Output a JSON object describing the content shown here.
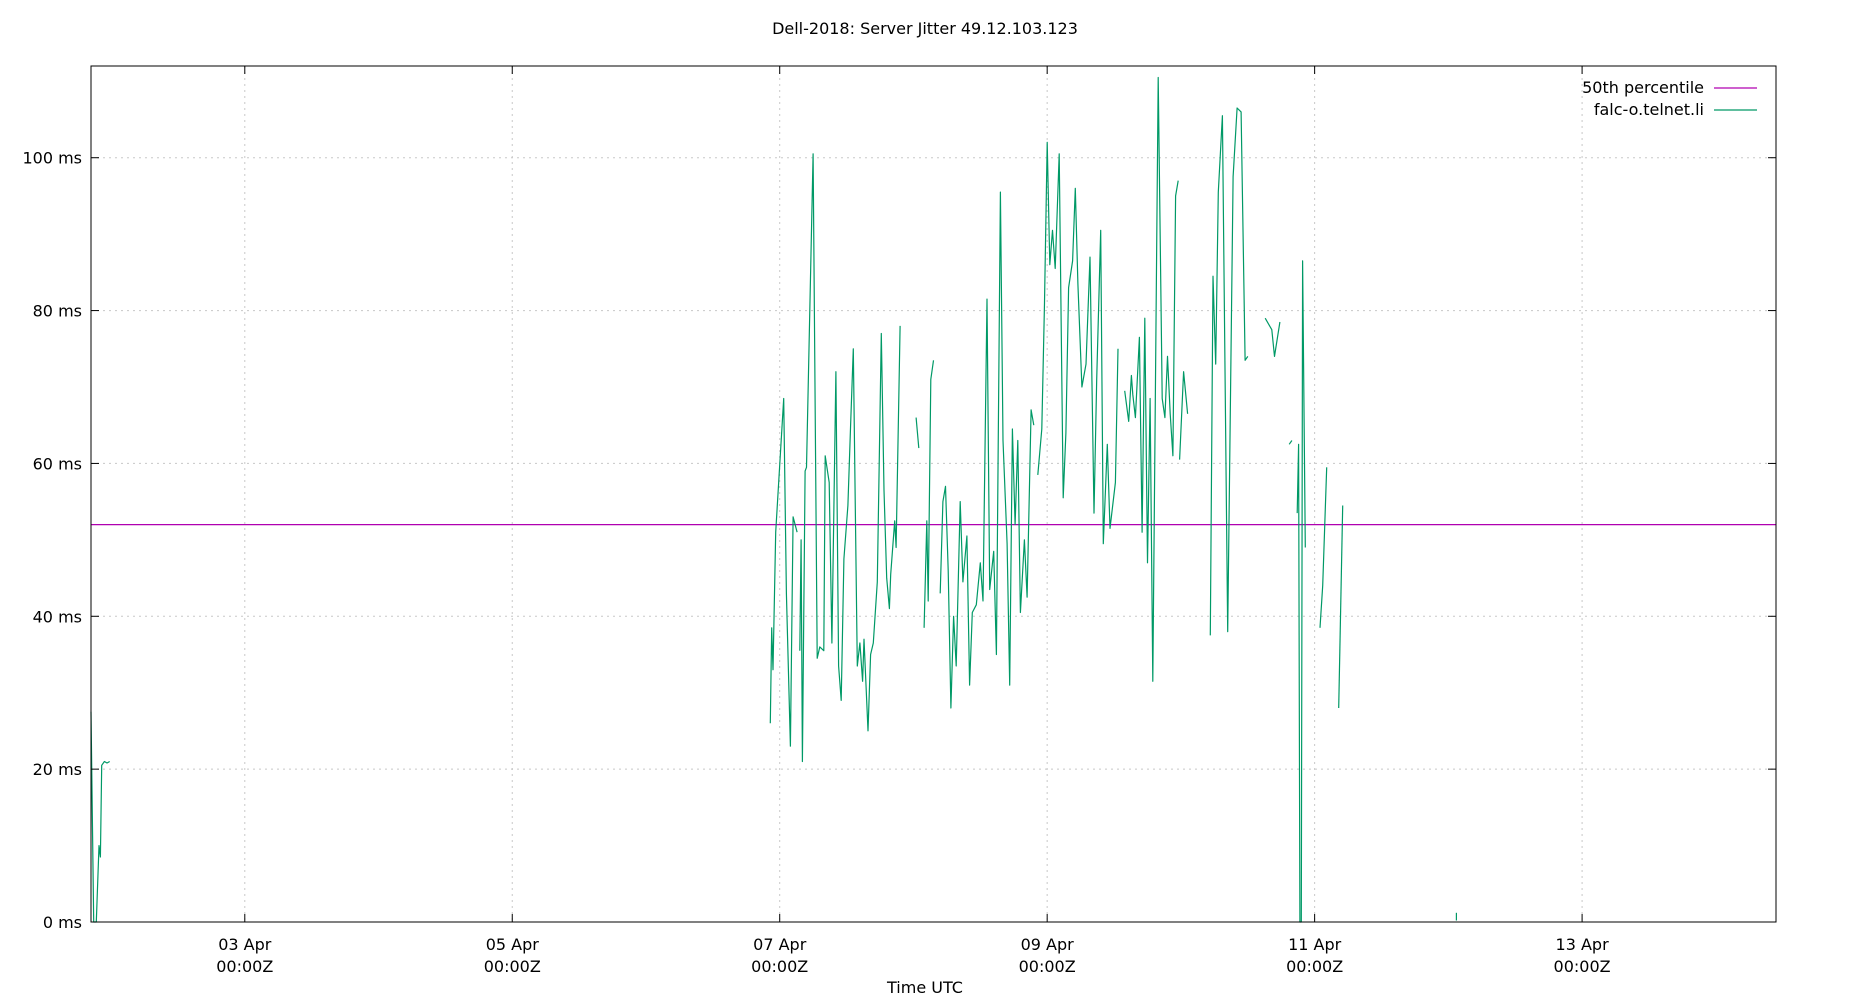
{
  "chart_data": {
    "type": "line",
    "title": "Dell-2018: Server Jitter 49.12.103.123",
    "xlabel": "Time UTC",
    "ylabel": "",
    "x_unit": "days since 03 Apr 00:00Z",
    "xlim": [
      -1.15,
      11.45
    ],
    "ylim": [
      0,
      112
    ],
    "yticks": [
      {
        "value": 0,
        "label": "0 ms"
      },
      {
        "value": 20,
        "label": "20 ms"
      },
      {
        "value": 40,
        "label": "40 ms"
      },
      {
        "value": 60,
        "label": "60 ms"
      },
      {
        "value": 80,
        "label": "80 ms"
      },
      {
        "value": 100,
        "label": "100 ms"
      }
    ],
    "xticks": [
      {
        "value": 0,
        "line1": "03 Apr",
        "line2": "00:00Z"
      },
      {
        "value": 2,
        "line1": "05 Apr",
        "line2": "00:00Z"
      },
      {
        "value": 4,
        "line1": "07 Apr",
        "line2": "00:00Z"
      },
      {
        "value": 6,
        "line1": "09 Apr",
        "line2": "00:00Z"
      },
      {
        "value": 8,
        "line1": "11 Apr",
        "line2": "00:00Z"
      },
      {
        "value": 10,
        "line1": "13 Apr",
        "line2": "00:00Z"
      }
    ],
    "grid": true,
    "legend_position": "top-right",
    "series": [
      {
        "name": "50th percentile",
        "color": "#b000b0",
        "segments": [
          [
            [
              -1.15,
              52
            ],
            [
              11.45,
              52
            ]
          ]
        ]
      },
      {
        "name": "falc-o.telnet.li",
        "color": "#009966",
        "segments": [
          [
            [
              -1.15,
              27.5
            ],
            [
              -1.13,
              0
            ],
            [
              -1.11,
              0
            ],
            [
              -1.09,
              10
            ],
            [
              -1.08,
              8.5
            ],
            [
              -1.07,
              20.5
            ],
            [
              -1.05,
              21
            ],
            [
              -1.03,
              20.8
            ],
            [
              -1.01,
              21
            ]
          ],
          [
            [
              -0.08,
              0.8
            ],
            [
              -0.08,
              0.8
            ]
          ],
          [
            [
              3.93,
              26
            ],
            [
              3.94,
              38.5
            ],
            [
              3.95,
              33
            ],
            [
              3.97,
              51
            ],
            [
              4.03,
              68.5
            ],
            [
              4.05,
              43
            ],
            [
              4.08,
              23
            ],
            [
              4.1,
              53
            ],
            [
              4.13,
              51
            ]
          ],
          [
            [
              4.15,
              35.5
            ],
            [
              4.16,
              50
            ],
            [
              4.17,
              21
            ],
            [
              4.19,
              59
            ],
            [
              4.2,
              59.5
            ],
            [
              4.25,
              100.5
            ],
            [
              4.28,
              34.5
            ],
            [
              4.3,
              36
            ],
            [
              4.33,
              35.5
            ],
            [
              4.34,
              61
            ],
            [
              4.37,
              57.5
            ],
            [
              4.39,
              36.5
            ],
            [
              4.42,
              72
            ],
            [
              4.44,
              33.5
            ],
            [
              4.46,
              29
            ],
            [
              4.48,
              47.5
            ],
            [
              4.51,
              54.5
            ],
            [
              4.53,
              65
            ],
            [
              4.55,
              75
            ],
            [
              4.58,
              33.5
            ],
            [
              4.6,
              36.5
            ],
            [
              4.62,
              31.5
            ],
            [
              4.63,
              37
            ],
            [
              4.66,
              25
            ],
            [
              4.68,
              35
            ],
            [
              4.7,
              36.5
            ],
            [
              4.73,
              44.5
            ],
            [
              4.76,
              77
            ],
            [
              4.78,
              56.5
            ],
            [
              4.8,
              45
            ],
            [
              4.82,
              41
            ],
            [
              4.83,
              45.5
            ],
            [
              4.86,
              52.5
            ],
            [
              4.87,
              49
            ],
            [
              4.9,
              78
            ]
          ],
          [
            [
              5.02,
              66
            ],
            [
              5.04,
              62
            ]
          ],
          [
            [
              5.08,
              38.5
            ],
            [
              5.1,
              52.5
            ],
            [
              5.11,
              42
            ],
            [
              5.13,
              71
            ],
            [
              5.15,
              73.5
            ]
          ],
          [
            [
              5.2,
              43
            ],
            [
              5.22,
              55
            ],
            [
              5.24,
              57
            ],
            [
              5.26,
              46
            ],
            [
              5.28,
              28
            ],
            [
              5.3,
              40
            ],
            [
              5.32,
              33.5
            ],
            [
              5.35,
              55
            ],
            [
              5.37,
              44.5
            ],
            [
              5.4,
              50.5
            ],
            [
              5.42,
              31
            ],
            [
              5.44,
              40.5
            ],
            [
              5.47,
              41.5
            ],
            [
              5.5,
              47
            ],
            [
              5.52,
              42
            ],
            [
              5.55,
              81.5
            ],
            [
              5.57,
              43.5
            ],
            [
              5.6,
              48.5
            ],
            [
              5.62,
              35
            ],
            [
              5.65,
              95.5
            ],
            [
              5.67,
              63
            ],
            [
              5.7,
              49.5
            ],
            [
              5.72,
              31
            ],
            [
              5.74,
              64.5
            ],
            [
              5.76,
              52
            ],
            [
              5.78,
              63
            ],
            [
              5.8,
              40.5
            ],
            [
              5.83,
              50
            ],
            [
              5.85,
              42.5
            ],
            [
              5.88,
              67
            ],
            [
              5.9,
              65
            ]
          ],
          [
            [
              5.93,
              58.5
            ],
            [
              5.96,
              64.5
            ],
            [
              5.98,
              81
            ],
            [
              6.0,
              102
            ],
            [
              6.02,
              86
            ],
            [
              6.04,
              90.5
            ],
            [
              6.06,
              85.5
            ],
            [
              6.09,
              100.5
            ],
            [
              6.12,
              55.5
            ],
            [
              6.14,
              64
            ],
            [
              6.16,
              83
            ],
            [
              6.19,
              86.5
            ],
            [
              6.21,
              96
            ],
            [
              6.23,
              83.5
            ],
            [
              6.26,
              70
            ],
            [
              6.29,
              73
            ],
            [
              6.32,
              87
            ],
            [
              6.35,
              53.5
            ],
            [
              6.37,
              71
            ],
            [
              6.4,
              90.5
            ],
            [
              6.42,
              49.5
            ],
            [
              6.45,
              62.5
            ],
            [
              6.47,
              51.5
            ],
            [
              6.51,
              57.5
            ],
            [
              6.53,
              75
            ]
          ],
          [
            [
              6.58,
              69.5
            ],
            [
              6.61,
              65.5
            ],
            [
              6.63,
              71.5
            ],
            [
              6.64,
              69
            ],
            [
              6.66,
              66
            ],
            [
              6.69,
              76.5
            ],
            [
              6.71,
              51
            ],
            [
              6.73,
              79
            ],
            [
              6.75,
              47
            ],
            [
              6.77,
              68.5
            ],
            [
              6.79,
              31.5
            ],
            [
              6.83,
              110.5
            ],
            [
              6.86,
              68.5
            ],
            [
              6.88,
              66
            ],
            [
              6.9,
              74
            ],
            [
              6.92,
              66.5
            ],
            [
              6.94,
              61
            ],
            [
              6.96,
              95
            ],
            [
              6.98,
              97
            ]
          ],
          [
            [
              6.99,
              60.5
            ],
            [
              7.02,
              72
            ],
            [
              7.05,
              66.5
            ]
          ],
          [
            [
              7.22,
              37.5
            ],
            [
              7.24,
              84.5
            ],
            [
              7.26,
              73
            ],
            [
              7.28,
              95.5
            ],
            [
              7.31,
              105.5
            ],
            [
              7.35,
              38
            ],
            [
              7.39,
              97.5
            ],
            [
              7.42,
              106.5
            ],
            [
              7.45,
              106
            ],
            [
              7.48,
              73.5
            ],
            [
              7.5,
              74
            ]
          ],
          [
            [
              7.63,
              79
            ],
            [
              7.68,
              77.5
            ],
            [
              7.7,
              74
            ],
            [
              7.74,
              78.5
            ]
          ],
          [
            [
              7.81,
              62.5
            ],
            [
              7.83,
              63
            ]
          ],
          [
            [
              7.87,
              53.5
            ],
            [
              7.88,
              62.5
            ],
            [
              7.89,
              0
            ],
            [
              7.9,
              0
            ],
            [
              7.91,
              86.5
            ],
            [
              7.93,
              49
            ]
          ],
          [
            [
              8.04,
              38.5
            ],
            [
              8.06,
              44
            ],
            [
              8.09,
              59.5
            ]
          ],
          [
            [
              8.18,
              28
            ],
            [
              8.21,
              54.5
            ]
          ],
          [
            [
              9.06,
              1.2
            ],
            [
              9.06,
              0.2
            ]
          ]
        ]
      }
    ]
  }
}
